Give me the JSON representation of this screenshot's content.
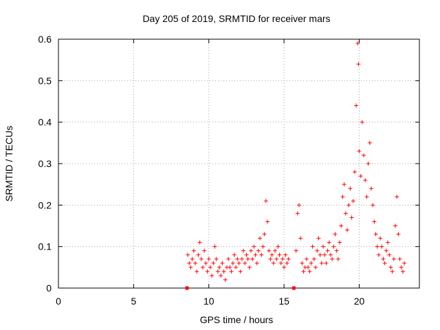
{
  "chart_data": {
    "type": "scatter",
    "title": "Day 205 of 2019, SRMTID for receiver mars",
    "xlabel": "GPS time / hours",
    "ylabel": "SRMTID / TECUs",
    "xlim": [
      0,
      24
    ],
    "ylim": [
      0,
      0.6
    ],
    "xticks": [
      "0",
      "5",
      "10",
      "15",
      "20"
    ],
    "xtick_values": [
      0,
      5,
      10,
      15,
      20
    ],
    "yticks": [
      "0",
      "0.1",
      "0.2",
      "0.3",
      "0.4",
      "0.5",
      "0.6"
    ],
    "ytick_values": [
      0,
      0.1,
      0.2,
      0.3,
      0.4,
      0.5,
      0.6
    ],
    "grid": true,
    "marker": "+",
    "color": "#ff0000",
    "series": [
      {
        "name": "SRMTID",
        "points": [
          [
            8.6,
            0.08
          ],
          [
            8.7,
            0.06
          ],
          [
            8.8,
            0.05
          ],
          [
            8.9,
            0.07
          ],
          [
            9.0,
            0.09
          ],
          [
            9.1,
            0.06
          ],
          [
            9.2,
            0.04
          ],
          [
            9.3,
            0.08
          ],
          [
            9.4,
            0.11
          ],
          [
            9.5,
            0.07
          ],
          [
            9.6,
            0.05
          ],
          [
            9.7,
            0.09
          ],
          [
            9.8,
            0.06
          ],
          [
            9.9,
            0.04
          ],
          [
            10.0,
            0.07
          ],
          [
            10.1,
            0.05
          ],
          [
            10.2,
            0.03
          ],
          [
            10.3,
            0.06
          ],
          [
            10.4,
            0.1
          ],
          [
            10.5,
            0.07
          ],
          [
            10.6,
            0.04
          ],
          [
            10.7,
            0.05
          ],
          [
            10.8,
            0.03
          ],
          [
            10.9,
            0.06
          ],
          [
            11.0,
            0.04
          ],
          [
            11.1,
            0.02
          ],
          [
            11.2,
            0.05
          ],
          [
            11.3,
            0.07
          ],
          [
            11.4,
            0.05
          ],
          [
            11.5,
            0.04
          ],
          [
            11.6,
            0.06
          ],
          [
            11.7,
            0.08
          ],
          [
            11.8,
            0.05
          ],
          [
            11.9,
            0.07
          ],
          [
            12.0,
            0.06
          ],
          [
            12.1,
            0.04
          ],
          [
            12.2,
            0.07
          ],
          [
            12.3,
            0.09
          ],
          [
            12.4,
            0.06
          ],
          [
            12.5,
            0.08
          ],
          [
            12.6,
            0.07
          ],
          [
            12.7,
            0.05
          ],
          [
            12.8,
            0.09
          ],
          [
            12.9,
            0.07
          ],
          [
            13.0,
            0.1
          ],
          [
            13.1,
            0.08
          ],
          [
            13.2,
            0.06
          ],
          [
            13.3,
            0.09
          ],
          [
            13.4,
            0.12
          ],
          [
            13.5,
            0.08
          ],
          [
            13.6,
            0.1
          ],
          [
            13.7,
            0.13
          ],
          [
            13.8,
            0.21
          ],
          [
            13.9,
            0.16
          ],
          [
            14.0,
            0.09
          ],
          [
            14.1,
            0.07
          ],
          [
            14.2,
            0.08
          ],
          [
            14.3,
            0.06
          ],
          [
            14.4,
            0.09
          ],
          [
            14.5,
            0.07
          ],
          [
            14.6,
            0.1
          ],
          [
            14.7,
            0.08
          ],
          [
            14.8,
            0.06
          ],
          [
            14.9,
            0.07
          ],
          [
            15.0,
            0.05
          ],
          [
            15.1,
            0.08
          ],
          [
            15.2,
            0.06
          ],
          [
            15.3,
            0.07
          ],
          [
            15.8,
            0.09
          ],
          [
            15.9,
            0.18
          ],
          [
            16.0,
            0.2
          ],
          [
            16.1,
            0.12
          ],
          [
            16.2,
            0.06
          ],
          [
            16.3,
            0.04
          ],
          [
            16.4,
            0.05
          ],
          [
            16.5,
            0.07
          ],
          [
            16.6,
            0.05
          ],
          [
            16.7,
            0.04
          ],
          [
            16.8,
            0.06
          ],
          [
            16.9,
            0.1
          ],
          [
            17.0,
            0.07
          ],
          [
            17.1,
            0.05
          ],
          [
            17.2,
            0.09
          ],
          [
            17.3,
            0.12
          ],
          [
            17.4,
            0.08
          ],
          [
            17.5,
            0.06
          ],
          [
            17.6,
            0.1
          ],
          [
            17.7,
            0.08
          ],
          [
            17.8,
            0.06
          ],
          [
            17.9,
            0.09
          ],
          [
            18.0,
            0.11
          ],
          [
            18.1,
            0.08
          ],
          [
            18.2,
            0.07
          ],
          [
            18.3,
            0.1
          ],
          [
            18.4,
            0.13
          ],
          [
            18.5,
            0.09
          ],
          [
            18.6,
            0.07
          ],
          [
            18.7,
            0.11
          ],
          [
            18.8,
            0.15
          ],
          [
            18.9,
            0.22
          ],
          [
            19.0,
            0.25
          ],
          [
            19.1,
            0.18
          ],
          [
            19.2,
            0.14
          ],
          [
            19.3,
            0.2
          ],
          [
            19.4,
            0.24
          ],
          [
            19.5,
            0.17
          ],
          [
            19.6,
            0.21
          ],
          [
            19.7,
            0.28
          ],
          [
            19.8,
            0.44
          ],
          [
            19.9,
            0.59
          ],
          [
            19.95,
            0.54
          ],
          [
            20.0,
            0.33
          ],
          [
            20.1,
            0.27
          ],
          [
            20.2,
            0.4
          ],
          [
            20.3,
            0.32
          ],
          [
            20.4,
            0.26
          ],
          [
            20.5,
            0.22
          ],
          [
            20.6,
            0.3
          ],
          [
            20.7,
            0.35
          ],
          [
            20.8,
            0.24
          ],
          [
            20.9,
            0.2
          ],
          [
            21.0,
            0.16
          ],
          [
            21.1,
            0.13
          ],
          [
            21.2,
            0.1
          ],
          [
            21.3,
            0.08
          ],
          [
            21.4,
            0.12
          ],
          [
            21.5,
            0.1
          ],
          [
            21.6,
            0.07
          ],
          [
            21.7,
            0.06
          ],
          [
            21.8,
            0.09
          ],
          [
            21.9,
            0.11
          ],
          [
            22.0,
            0.08
          ],
          [
            22.1,
            0.05
          ],
          [
            22.2,
            0.04
          ],
          [
            22.3,
            0.07
          ],
          [
            22.4,
            0.15
          ],
          [
            22.5,
            0.22
          ],
          [
            22.6,
            0.13
          ],
          [
            22.7,
            0.07
          ],
          [
            22.8,
            0.05
          ],
          [
            22.9,
            0.04
          ],
          [
            23.0,
            0.06
          ]
        ]
      }
    ],
    "gaps": [
      [
        8.55,
        0
      ],
      [
        15.65,
        0
      ]
    ]
  }
}
